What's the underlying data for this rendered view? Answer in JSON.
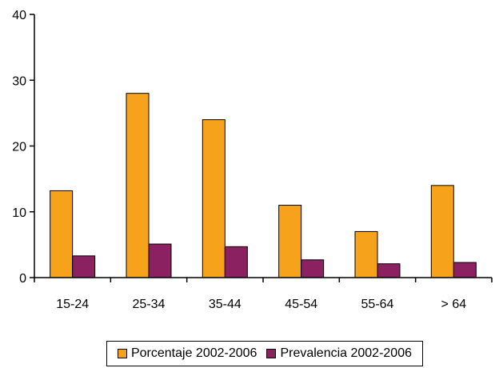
{
  "chart_data": {
    "type": "bar",
    "categories": [
      "15-24",
      "25-34",
      "35-44",
      "45-54",
      "55-64",
      "> 64"
    ],
    "series": [
      {
        "name": "Porcentaje 2002-2006",
        "color": "#F7A21B",
        "values": [
          13.2,
          28.0,
          24.0,
          11.0,
          7.0,
          14.0
        ]
      },
      {
        "name": "Prevalencia 2002-2006",
        "color": "#8B2160",
        "values": [
          3.3,
          5.1,
          4.7,
          2.7,
          2.1,
          2.3
        ]
      }
    ],
    "yticks": [
      0,
      10,
      20,
      30,
      40
    ],
    "ylim": [
      0,
      40
    ],
    "grid": false,
    "legend_position": "bottom"
  }
}
